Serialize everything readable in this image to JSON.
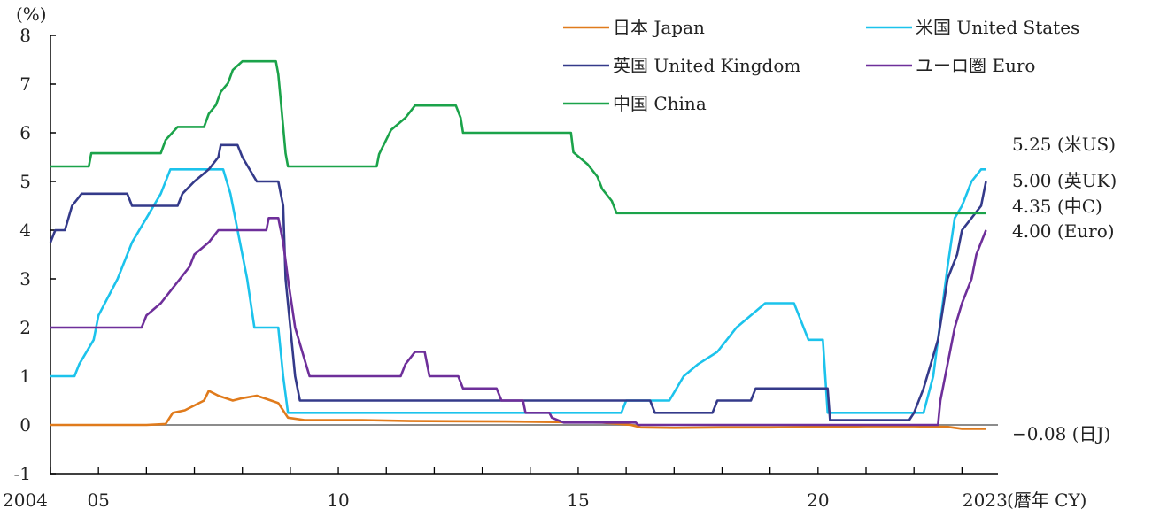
{
  "chart_data": {
    "type": "line",
    "title": "",
    "xlabel": "(暦年 CY)",
    "ylabel": "(%)",
    "ylim": [
      -1,
      8
    ],
    "xlim": [
      2004.0,
      2023.75
    ],
    "grid": false,
    "legend_position": "top-right",
    "y_ticks": [
      -1,
      0,
      1,
      2,
      3,
      4,
      5,
      6,
      7,
      8
    ],
    "x_ticks": [
      {
        "value": 2004,
        "label": "2004"
      },
      {
        "value": 2005,
        "label": "05"
      },
      {
        "value": 2010,
        "label": "10"
      },
      {
        "value": 2015,
        "label": "15"
      },
      {
        "value": 2020,
        "label": "20"
      },
      {
        "value": 2023,
        "label": "2023"
      }
    ],
    "series": [
      {
        "name": "日本 Japan",
        "color": "#e07b1c",
        "points": [
          [
            2004.0,
            0.0
          ],
          [
            2006.0,
            0.0
          ],
          [
            2006.4,
            0.02
          ],
          [
            2006.55,
            0.25
          ],
          [
            2006.8,
            0.3
          ],
          [
            2007.2,
            0.5
          ],
          [
            2007.3,
            0.7
          ],
          [
            2007.5,
            0.6
          ],
          [
            2007.8,
            0.5
          ],
          [
            2008.0,
            0.55
          ],
          [
            2008.3,
            0.6
          ],
          [
            2008.6,
            0.5
          ],
          [
            2008.75,
            0.45
          ],
          [
            2008.95,
            0.15
          ],
          [
            2009.3,
            0.1
          ],
          [
            2010.5,
            0.1
          ],
          [
            2011.5,
            0.08
          ],
          [
            2013.5,
            0.07
          ],
          [
            2014.5,
            0.06
          ],
          [
            2015.5,
            0.05
          ],
          [
            2016.1,
            0.0
          ],
          [
            2016.3,
            -0.05
          ],
          [
            2017.0,
            -0.06
          ],
          [
            2018.0,
            -0.05
          ],
          [
            2019.0,
            -0.05
          ],
          [
            2020.0,
            -0.04
          ],
          [
            2021.0,
            -0.03
          ],
          [
            2022.0,
            -0.03
          ],
          [
            2022.7,
            -0.04
          ],
          [
            2023.0,
            -0.08
          ],
          [
            2023.5,
            -0.08
          ]
        ]
      },
      {
        "name": "米国 United States",
        "color": "#1cc3ec",
        "points": [
          [
            2004.0,
            1.0
          ],
          [
            2004.5,
            1.0
          ],
          [
            2004.6,
            1.25
          ],
          [
            2004.9,
            1.75
          ],
          [
            2005.0,
            2.25
          ],
          [
            2005.4,
            3.0
          ],
          [
            2005.7,
            3.75
          ],
          [
            2006.0,
            4.25
          ],
          [
            2006.3,
            4.75
          ],
          [
            2006.5,
            5.25
          ],
          [
            2007.6,
            5.25
          ],
          [
            2007.75,
            4.75
          ],
          [
            2008.0,
            3.5
          ],
          [
            2008.1,
            3.0
          ],
          [
            2008.25,
            2.0
          ],
          [
            2008.75,
            2.0
          ],
          [
            2008.85,
            1.0
          ],
          [
            2008.95,
            0.25
          ],
          [
            2015.9,
            0.25
          ],
          [
            2016.0,
            0.5
          ],
          [
            2016.9,
            0.5
          ],
          [
            2017.2,
            1.0
          ],
          [
            2017.5,
            1.25
          ],
          [
            2017.9,
            1.5
          ],
          [
            2018.3,
            2.0
          ],
          [
            2018.9,
            2.5
          ],
          [
            2019.5,
            2.5
          ],
          [
            2019.6,
            2.25
          ],
          [
            2019.8,
            1.75
          ],
          [
            2020.1,
            1.75
          ],
          [
            2020.2,
            0.25
          ],
          [
            2022.2,
            0.25
          ],
          [
            2022.4,
            1.0
          ],
          [
            2022.5,
            1.75
          ],
          [
            2022.7,
            3.25
          ],
          [
            2022.85,
            4.25
          ],
          [
            2023.0,
            4.5
          ],
          [
            2023.2,
            5.0
          ],
          [
            2023.4,
            5.25
          ],
          [
            2023.5,
            5.25
          ]
        ]
      },
      {
        "name": "英国 United Kingdom",
        "color": "#343a8a",
        "points": [
          [
            2004.0,
            3.75
          ],
          [
            2004.1,
            4.0
          ],
          [
            2004.3,
            4.0
          ],
          [
            2004.45,
            4.5
          ],
          [
            2004.65,
            4.75
          ],
          [
            2005.6,
            4.75
          ],
          [
            2005.7,
            4.5
          ],
          [
            2006.65,
            4.5
          ],
          [
            2006.75,
            4.75
          ],
          [
            2007.0,
            5.0
          ],
          [
            2007.3,
            5.25
          ],
          [
            2007.5,
            5.5
          ],
          [
            2007.55,
            5.75
          ],
          [
            2007.9,
            5.75
          ],
          [
            2008.0,
            5.5
          ],
          [
            2008.3,
            5.0
          ],
          [
            2008.75,
            5.0
          ],
          [
            2008.85,
            4.5
          ],
          [
            2008.9,
            3.0
          ],
          [
            2009.0,
            2.0
          ],
          [
            2009.1,
            1.0
          ],
          [
            2009.2,
            0.5
          ],
          [
            2016.5,
            0.5
          ],
          [
            2016.6,
            0.25
          ],
          [
            2017.8,
            0.25
          ],
          [
            2017.9,
            0.5
          ],
          [
            2018.6,
            0.5
          ],
          [
            2018.7,
            0.75
          ],
          [
            2020.2,
            0.75
          ],
          [
            2020.25,
            0.1
          ],
          [
            2021.9,
            0.1
          ],
          [
            2022.0,
            0.25
          ],
          [
            2022.2,
            0.75
          ],
          [
            2022.5,
            1.75
          ],
          [
            2022.7,
            3.0
          ],
          [
            2022.9,
            3.5
          ],
          [
            2023.0,
            4.0
          ],
          [
            2023.2,
            4.25
          ],
          [
            2023.4,
            4.5
          ],
          [
            2023.5,
            5.0
          ]
        ]
      },
      {
        "name": "ユーロ圏 Euro",
        "color": "#6e2f9a",
        "points": [
          [
            2004.0,
            2.0
          ],
          [
            2005.9,
            2.0
          ],
          [
            2006.0,
            2.25
          ],
          [
            2006.3,
            2.5
          ],
          [
            2006.5,
            2.75
          ],
          [
            2006.7,
            3.0
          ],
          [
            2006.9,
            3.25
          ],
          [
            2007.0,
            3.5
          ],
          [
            2007.3,
            3.75
          ],
          [
            2007.5,
            4.0
          ],
          [
            2008.5,
            4.0
          ],
          [
            2008.55,
            4.25
          ],
          [
            2008.75,
            4.25
          ],
          [
            2008.85,
            3.75
          ],
          [
            2008.95,
            3.0
          ],
          [
            2009.1,
            2.0
          ],
          [
            2009.25,
            1.5
          ],
          [
            2009.4,
            1.0
          ],
          [
            2011.3,
            1.0
          ],
          [
            2011.4,
            1.25
          ],
          [
            2011.6,
            1.5
          ],
          [
            2011.8,
            1.5
          ],
          [
            2011.9,
            1.0
          ],
          [
            2012.5,
            1.0
          ],
          [
            2012.6,
            0.75
          ],
          [
            2013.3,
            0.75
          ],
          [
            2013.4,
            0.5
          ],
          [
            2013.85,
            0.5
          ],
          [
            2013.9,
            0.25
          ],
          [
            2014.4,
            0.25
          ],
          [
            2014.45,
            0.15
          ],
          [
            2014.7,
            0.05
          ],
          [
            2016.2,
            0.05
          ],
          [
            2016.25,
            0.0
          ],
          [
            2022.5,
            0.0
          ],
          [
            2022.55,
            0.5
          ],
          [
            2022.7,
            1.25
          ],
          [
            2022.85,
            2.0
          ],
          [
            2023.0,
            2.5
          ],
          [
            2023.2,
            3.0
          ],
          [
            2023.3,
            3.5
          ],
          [
            2023.5,
            4.0
          ]
        ]
      },
      {
        "name": "中国 China",
        "color": "#1ba34a",
        "points": [
          [
            2004.0,
            5.31
          ],
          [
            2004.8,
            5.31
          ],
          [
            2004.85,
            5.58
          ],
          [
            2006.3,
            5.58
          ],
          [
            2006.4,
            5.85
          ],
          [
            2006.65,
            6.12
          ],
          [
            2007.2,
            6.12
          ],
          [
            2007.3,
            6.39
          ],
          [
            2007.45,
            6.57
          ],
          [
            2007.55,
            6.84
          ],
          [
            2007.7,
            7.02
          ],
          [
            2007.8,
            7.29
          ],
          [
            2008.0,
            7.47
          ],
          [
            2008.7,
            7.47
          ],
          [
            2008.75,
            7.2
          ],
          [
            2008.8,
            6.66
          ],
          [
            2008.9,
            5.58
          ],
          [
            2008.95,
            5.31
          ],
          [
            2010.8,
            5.31
          ],
          [
            2010.85,
            5.56
          ],
          [
            2011.1,
            6.06
          ],
          [
            2011.4,
            6.31
          ],
          [
            2011.6,
            6.56
          ],
          [
            2012.45,
            6.56
          ],
          [
            2012.55,
            6.31
          ],
          [
            2012.6,
            6.0
          ],
          [
            2014.85,
            6.0
          ],
          [
            2014.9,
            5.6
          ],
          [
            2015.2,
            5.35
          ],
          [
            2015.4,
            5.1
          ],
          [
            2015.5,
            4.85
          ],
          [
            2015.7,
            4.6
          ],
          [
            2015.8,
            4.35
          ],
          [
            2023.5,
            4.35
          ]
        ]
      }
    ],
    "end_labels": [
      {
        "value": 5.25,
        "text": "5.25 (米US)"
      },
      {
        "value": 5.0,
        "text": "5.00 (英UK)"
      },
      {
        "value": 4.35,
        "text": "4.35 (中C)"
      },
      {
        "value": 4.0,
        "text": "4.00 (Euro)"
      },
      {
        "value": -0.08,
        "text": "−0.08 (日J)"
      }
    ]
  }
}
